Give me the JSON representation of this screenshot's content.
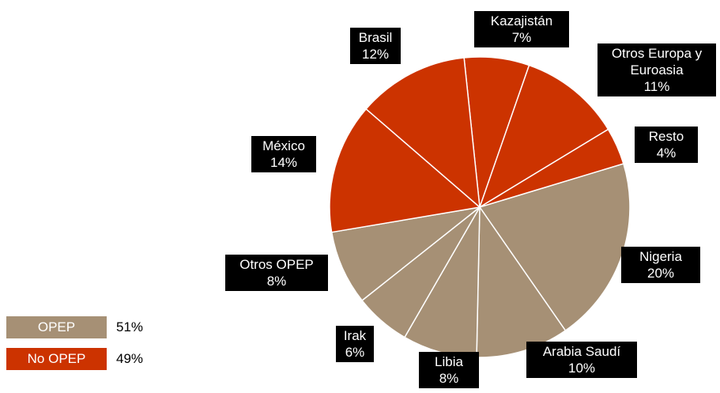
{
  "chart_data": {
    "type": "pie",
    "categories": [
      "Kazajistán",
      "Otros Europa y Euroasia",
      "Resto",
      "Nigeria",
      "Arabia Saudí",
      "Libia",
      "Irak",
      "Otros OPEP",
      "México",
      "Brasil"
    ],
    "values": [
      7,
      11,
      4,
      20,
      10,
      8,
      6,
      8,
      14,
      12
    ],
    "value_labels": [
      "7%",
      "11%",
      "4%",
      "20%",
      "10%",
      "8%",
      "6%",
      "8%",
      "14%",
      "12%"
    ],
    "colors": [
      "#cc3300",
      "#cc3300",
      "#cc3300",
      "#a69075",
      "#a69075",
      "#a69075",
      "#a69075",
      "#a69075",
      "#cc3300",
      "#cc3300"
    ],
    "legend": [
      {
        "name": "OPEP",
        "color": "#a69075",
        "value": 51,
        "value_label": "51%"
      },
      {
        "name": "No OPEP",
        "color": "#cc3300",
        "value": 49,
        "value_label": "49%"
      }
    ]
  }
}
